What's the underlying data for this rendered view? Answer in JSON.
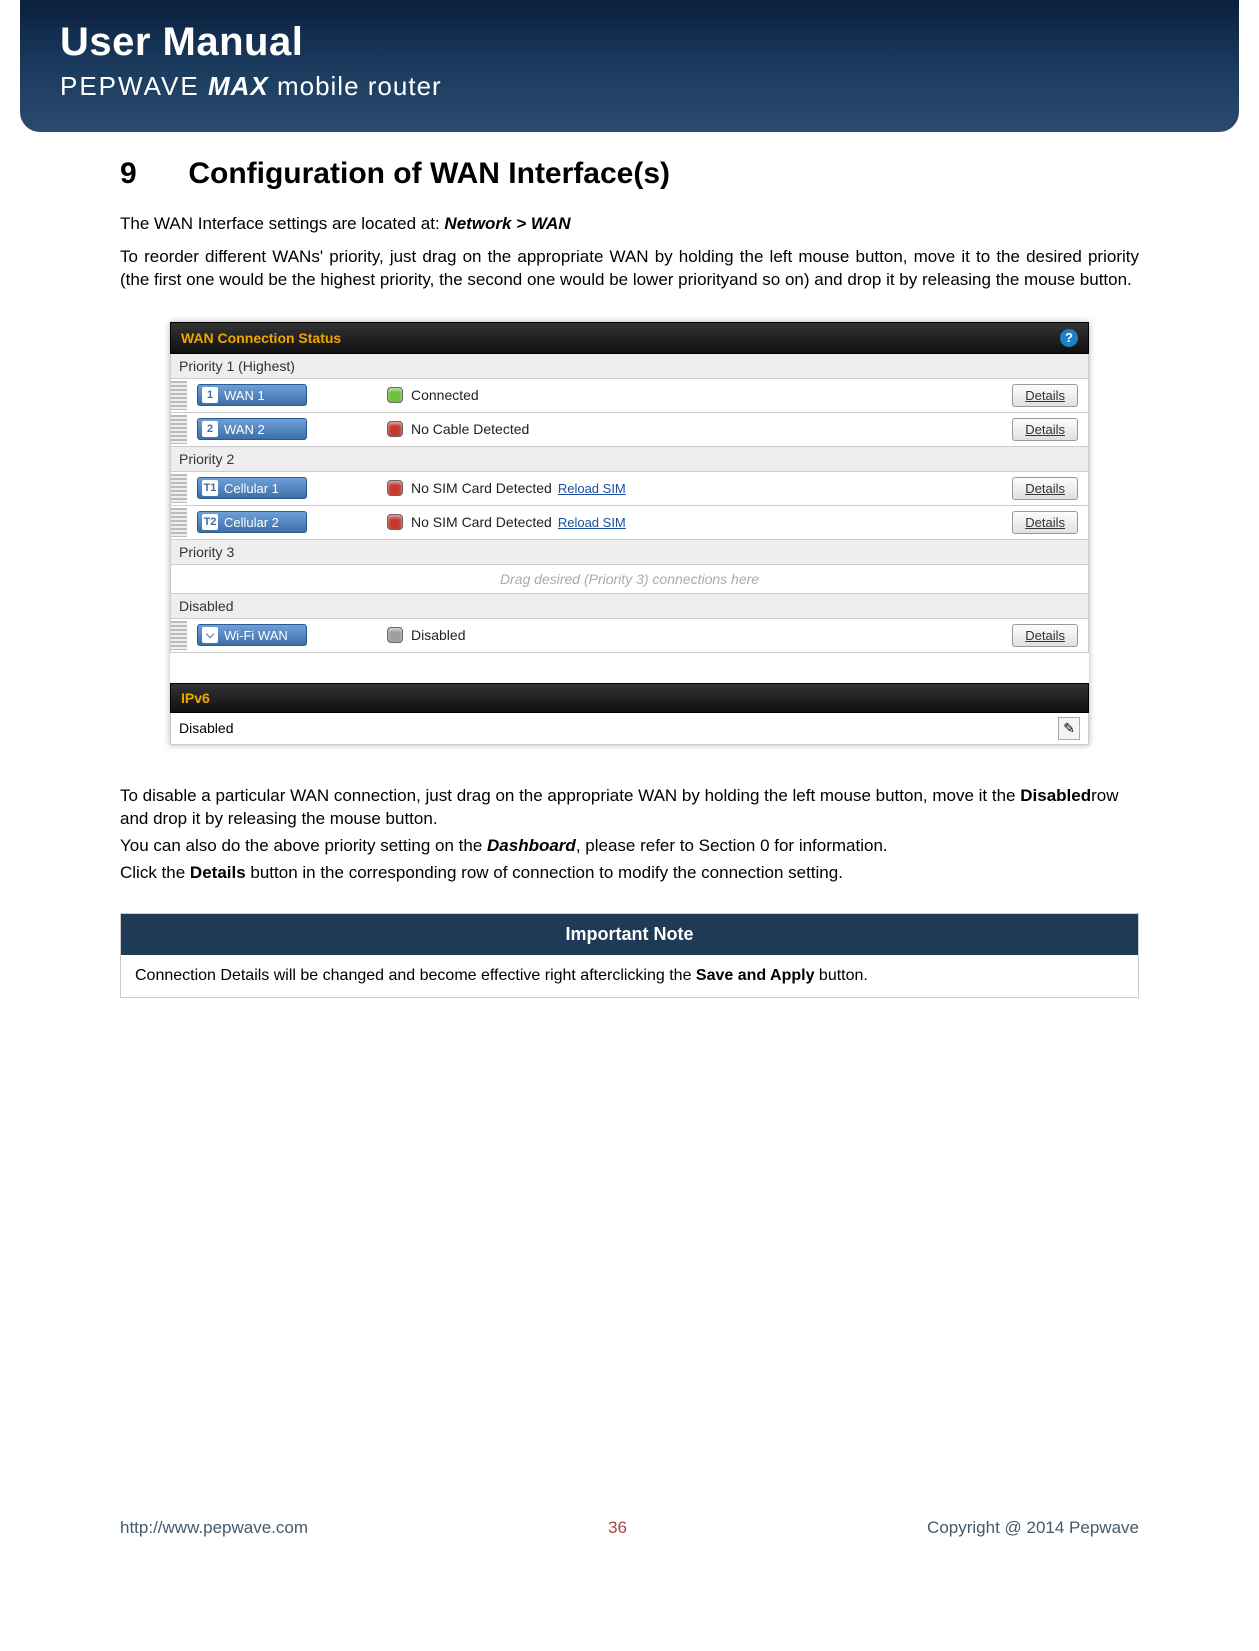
{
  "header": {
    "title": "User Manual",
    "brand": "PEPWAVE",
    "model": "MAX",
    "tag": "mobile router"
  },
  "section": {
    "number": "9",
    "title": "Configuration of WAN Interface(s)"
  },
  "intro": {
    "p1_a": "The WAN Interface settings are located at: ",
    "p1_b": "Network > WAN",
    "p2": "To reorder different WANs' priority, just drag on the appropriate WAN by holding the left mouse button, move it to the desired priority (the first one would be the highest priority, the second one would be lower priorityand so on) and drop it by releasing the mouse button."
  },
  "panel": {
    "title": "WAN Connection Status",
    "groups": [
      {
        "label": "Priority 1 (Highest)",
        "rows": [
          {
            "num": "1",
            "name": "WAN 1",
            "status": "Connected",
            "dot": "#6bbf3a",
            "link": null
          },
          {
            "num": "2",
            "name": "WAN 2",
            "status": "No Cable Detected",
            "dot": "#c43a2f",
            "link": null
          }
        ]
      },
      {
        "label": "Priority 2",
        "rows": [
          {
            "num": "T1",
            "name": "Cellular 1",
            "status": "No SIM Card Detected",
            "dot": "#c43a2f",
            "link": "Reload SIM"
          },
          {
            "num": "T2",
            "name": "Cellular 2",
            "status": "No SIM Card Detected",
            "dot": "#c43a2f",
            "link": "Reload SIM"
          }
        ]
      },
      {
        "label": "Priority 3",
        "rows": [],
        "hint": "Drag desired (Priority 3) connections here"
      },
      {
        "label": "Disabled",
        "rows": [
          {
            "num": "⌵",
            "name": "Wi-Fi WAN",
            "status": "Disabled",
            "dot": "#9e9e9e",
            "link": null
          }
        ]
      }
    ],
    "details_label": "Details",
    "ipv6": {
      "title": "IPv6",
      "status": "Disabled"
    }
  },
  "post": {
    "p1a": "To disable a particular WAN connection, just drag on the appropriate WAN by holding the left mouse button, move it the ",
    "p1b": "Disabled",
    "p1c": "row and drop it by releasing the mouse button.",
    "p2a": "You can also do the above priority setting on the ",
    "p2b": "Dashboard",
    "p2c": ", please refer to Section 0 for information.",
    "p3a": "Click the ",
    "p3b": "Details",
    "p3c": " button in the corresponding row of connection to modify the connection setting."
  },
  "note": {
    "title": "Important Note",
    "body_a": "Connection Details will be changed and become effective right afterclicking the ",
    "body_b": "Save and Apply",
    "body_c": " button."
  },
  "footer": {
    "url": "http://www.pepwave.com",
    "page": "36",
    "copyright": "Copyright @ 2014 Pepwave"
  }
}
